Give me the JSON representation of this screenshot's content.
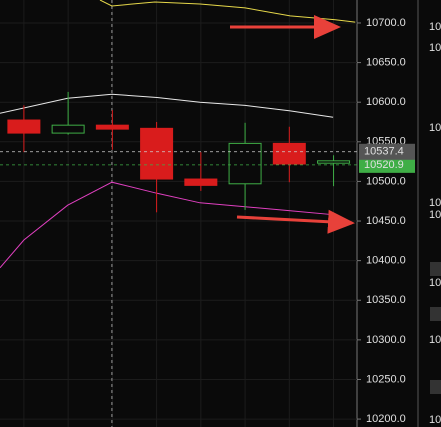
{
  "chart_data": {
    "type": "candlestick",
    "x": [
      0,
      1,
      2,
      3,
      4,
      5,
      6,
      7
    ],
    "open": [
      10577.5,
      10561,
      10571,
      10567,
      10503,
      10497,
      10548,
      10523
    ],
    "high": [
      10596,
      10613,
      10590,
      10575,
      10537,
      10574,
      10569,
      10533
    ],
    "low": [
      10537,
      10559,
      10540,
      10461,
      10488,
      10464,
      10499,
      10494
    ],
    "close": [
      10561,
      10571,
      10566,
      10503,
      10495,
      10548,
      10522,
      10526
    ],
    "up_color": "#3fae46",
    "down_color": "#d91c1c",
    "lines": [
      {
        "color": "#e6d84a",
        "x": [
          1.72,
          1.99,
          2.96,
          3.98,
          5.0,
          6.02,
          7.04,
          7.49
        ],
        "values": [
          10729,
          10721.5,
          10726.5,
          10724,
          10719,
          10709,
          10704,
          10701
        ]
      },
      {
        "color": "#e8e8e8",
        "x": [
          -0.54,
          0.99,
          1.99,
          3.01,
          3.98,
          5.0,
          6.02,
          6.99
        ],
        "values": [
          10586,
          10605,
          10610,
          10606,
          10600,
          10596,
          10589,
          10581
        ]
      },
      {
        "color": "#e040c0",
        "x": [
          -0.54,
          0.0,
          0.99,
          1.99,
          3.01,
          3.98,
          5.0,
          6.02,
          6.99
        ],
        "values": [
          10391,
          10426,
          10470,
          10499,
          10485,
          10473,
          10468,
          10463,
          10458
        ]
      }
    ],
    "price_markers": [
      {
        "value": 10537.4,
        "label": "10537.4",
        "color": "#d0d0d0",
        "bg": "#555555"
      },
      {
        "value": 10520.9,
        "label": "10520.9",
        "color": "#3fae46",
        "bg": "#3fae46"
      }
    ],
    "crosshair_x": 1.99,
    "xlim": [
      -0.54,
      7.53
    ],
    "ylim": [
      10190,
      10729
    ],
    "yticks": [
      {
        "value": 10200,
        "label": "10200.0"
      },
      {
        "value": 10250,
        "label": "10250.0"
      },
      {
        "value": 10300,
        "label": "10300.0"
      },
      {
        "value": 10350,
        "label": "10350.0"
      },
      {
        "value": 10400,
        "label": "10400.0"
      },
      {
        "value": 10450,
        "label": "10450.0"
      },
      {
        "value": 10500,
        "label": "10500.0"
      },
      {
        "value": 10550,
        "label": "10550.0"
      },
      {
        "value": 10600,
        "label": "10600.0"
      },
      {
        "value": 10650,
        "label": "10650.0"
      },
      {
        "value": 10700,
        "label": "10700.0"
      }
    ],
    "grid": true
  },
  "side_panel_labels": [
    "10",
    "10",
    "10",
    "10",
    "10",
    "10",
    "10",
    "10"
  ]
}
